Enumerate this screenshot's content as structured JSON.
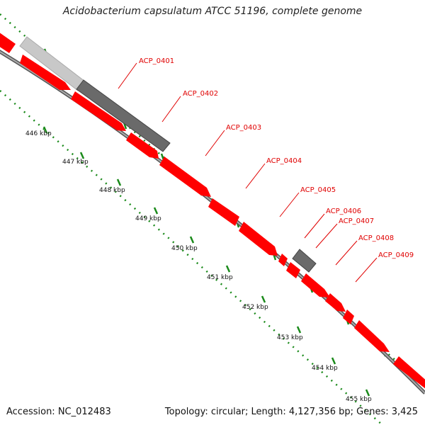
{
  "title": "Acidobacterium capsulatum ATCC 51196, complete genome",
  "accession_text": "Accession: NC_012483",
  "summary_text": "Topology: circular; Length: 4,127,356 bp; Genes: 3,425",
  "colors": {
    "gene_forward": "#ff0000",
    "gene_reverse": "#ff0000",
    "gene_grey": "#6a6a6a",
    "gene_light_grey": "#c8c8c8",
    "backbone": "#888888",
    "ruler": "#1a8a1a",
    "label": "#e00000"
  },
  "gene_labels": [
    {
      "name": "ACP_0401"
    },
    {
      "name": "ACP_0402"
    },
    {
      "name": "ACP_0403"
    },
    {
      "name": "ACP_0404"
    },
    {
      "name": "ACP_0405"
    },
    {
      "name": "ACP_0406"
    },
    {
      "name": "ACP_0407"
    },
    {
      "name": "ACP_0408"
    },
    {
      "name": "ACP_0409"
    }
  ],
  "ruler_ticks": [
    "446 kbp",
    "447 kbp",
    "448 kbp",
    "449 kbp",
    "450 kbp",
    "451 kbp",
    "452 kbp",
    "453 kbp",
    "454 kbp",
    "455 kbp"
  ]
}
